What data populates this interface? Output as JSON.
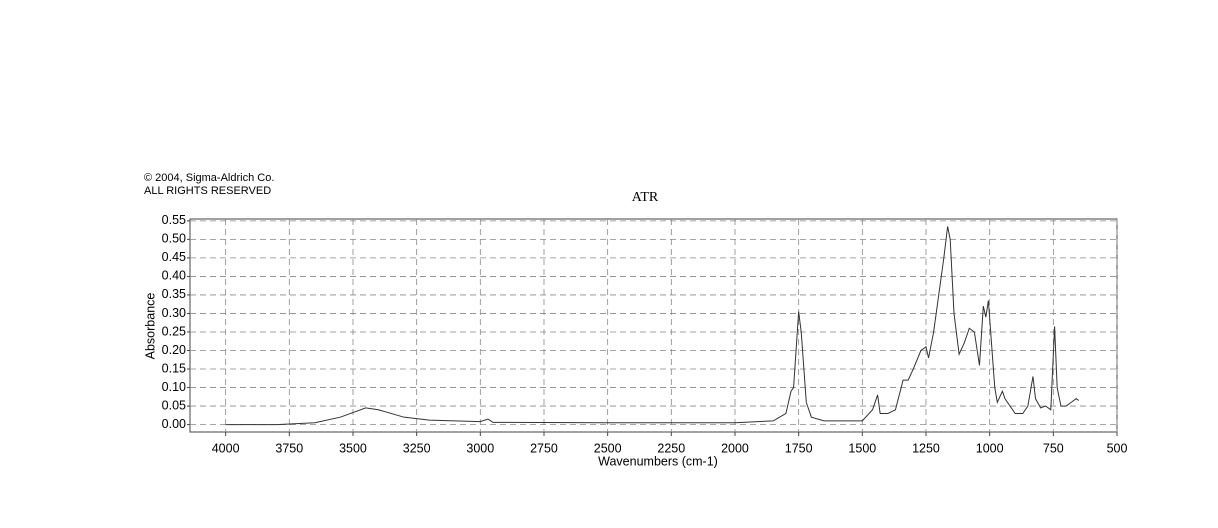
{
  "chart_data": {
    "type": "line",
    "title": "ATR",
    "notes": [
      "© 2004, Sigma-Aldrich Co.",
      "ALL RIGHTS RESERVED"
    ],
    "x_label": "Wavenumbers (cm-1)",
    "y_label": "Absorbance",
    "color": "#333333",
    "grid": true,
    "xlim": [
      4140,
      500
    ],
    "ylim": [
      -0.02,
      0.555
    ],
    "xticks": [
      4000,
      3750,
      3500,
      3250,
      3000,
      2750,
      2500,
      2250,
      2000,
      1750,
      1500,
      1250,
      1000,
      750,
      500
    ],
    "yticks": [
      {
        "value": 0,
        "label": "0.00"
      },
      {
        "value": 0.05,
        "label": "0.05"
      },
      {
        "value": 0.1,
        "label": "0.10"
      },
      {
        "value": 0.15,
        "label": "0.15"
      },
      {
        "value": 0.2,
        "label": "0.20"
      },
      {
        "value": 0.25,
        "label": "0.25"
      },
      {
        "value": 0.3,
        "label": "0.30"
      },
      {
        "value": 0.35,
        "label": "0.35"
      },
      {
        "value": 0.4,
        "label": "0.40"
      },
      {
        "value": 0.45,
        "label": "0.45"
      },
      {
        "value": 0.5,
        "label": "0.50"
      },
      {
        "value": 0.55,
        "label": "0.55"
      }
    ],
    "x": [
      4000,
      3800,
      3650,
      3550,
      3450,
      3400,
      3300,
      3200,
      3000,
      2970,
      2950,
      2500,
      2000,
      1850,
      1800,
      1780,
      1770,
      1750,
      1740,
      1720,
      1700,
      1650,
      1500,
      1460,
      1440,
      1430,
      1400,
      1370,
      1340,
      1320,
      1300,
      1270,
      1250,
      1240,
      1220,
      1200,
      1180,
      1165,
      1155,
      1140,
      1120,
      1100,
      1080,
      1060,
      1040,
      1025,
      1015,
      1005,
      995,
      980,
      970,
      950,
      940,
      920,
      900,
      870,
      850,
      830,
      820,
      800,
      780,
      760,
      745,
      735,
      720,
      700,
      680,
      660,
      650
    ],
    "values": [
      0.0,
      0.0,
      0.005,
      0.02,
      0.045,
      0.04,
      0.02,
      0.012,
      0.008,
      0.015,
      0.006,
      0.005,
      0.005,
      0.01,
      0.03,
      0.09,
      0.1,
      0.305,
      0.25,
      0.06,
      0.02,
      0.01,
      0.01,
      0.04,
      0.08,
      0.03,
      0.03,
      0.04,
      0.12,
      0.12,
      0.15,
      0.2,
      0.21,
      0.18,
      0.25,
      0.35,
      0.45,
      0.535,
      0.5,
      0.3,
      0.19,
      0.22,
      0.26,
      0.25,
      0.16,
      0.32,
      0.29,
      0.335,
      0.24,
      0.1,
      0.06,
      0.09,
      0.07,
      0.05,
      0.03,
      0.03,
      0.05,
      0.13,
      0.07,
      0.045,
      0.05,
      0.04,
      0.265,
      0.1,
      0.05,
      0.05,
      0.06,
      0.07,
      0.065
    ]
  }
}
